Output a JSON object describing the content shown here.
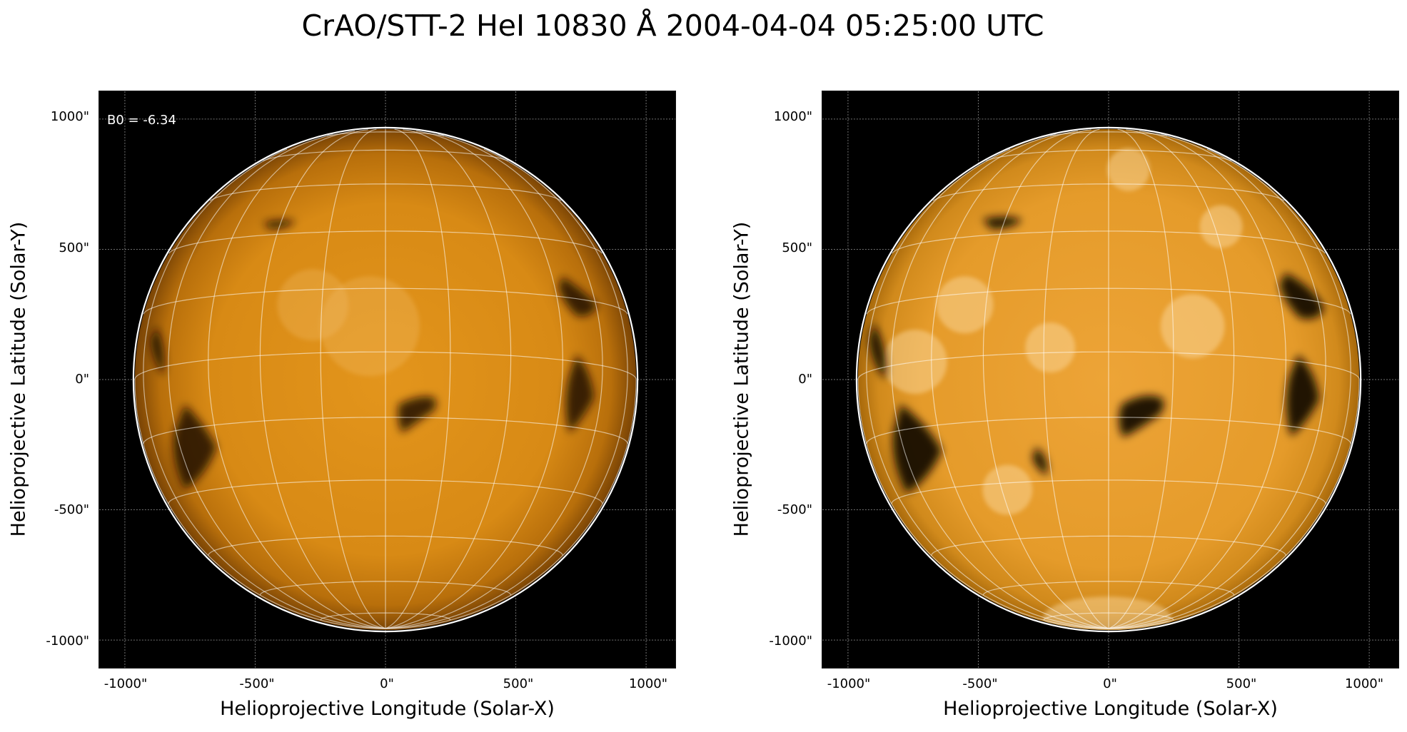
{
  "title": "CrAO/STT-2 HeI 10830 Å 2004-04-04 05:25:00 UTC",
  "panels": [
    {
      "annotation": "B0 = -6.34",
      "xlabel": "Helioprojective Longitude (Solar-X)",
      "ylabel": "Helioprojective Latitude (Solar-Y)",
      "xticks": [
        "-1000\"",
        "-500\"",
        "0\"",
        "500\"",
        "1000\""
      ],
      "yticks": [
        "1000\"",
        "500\"",
        "0\"",
        "-500\"",
        "-1000\""
      ],
      "colormap": "orange",
      "contrast": "normal"
    },
    {
      "annotation": "",
      "xlabel": "Helioprojective Longitude (Solar-X)",
      "ylabel": "Helioprojective Latitude (Solar-Y)",
      "xticks": [
        "-1000\"",
        "-500\"",
        "0\"",
        "500\"",
        "1000\""
      ],
      "yticks": [
        "1000\"",
        "500\"",
        "0\"",
        "-500\"",
        "-1000\""
      ],
      "colormap": "orange",
      "contrast": "enhanced"
    }
  ],
  "colors": {
    "sun_base": "#d98a14",
    "sun_limb": "#6e3f04",
    "sun_bright": "#f4c277",
    "background": "#000000",
    "grid": "#ffffff"
  }
}
